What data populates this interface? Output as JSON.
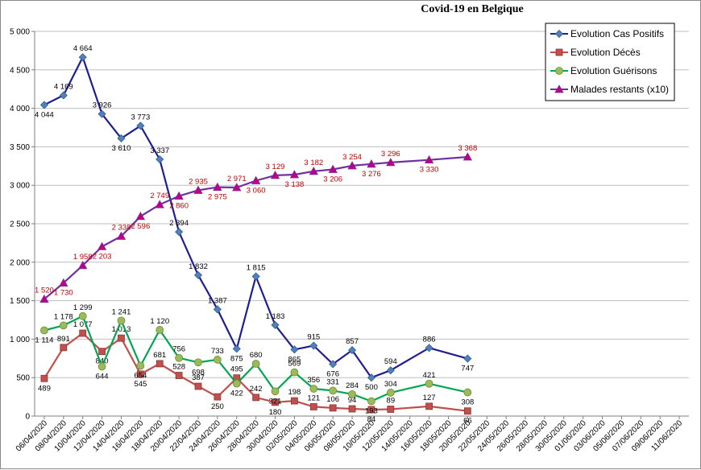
{
  "chart_data": {
    "type": "line",
    "title": "Covid-19 en Belgique",
    "xlabel": "",
    "ylabel": "",
    "ylim": [
      0,
      5000
    ],
    "y_ticks": [
      "0",
      "500",
      "1 000",
      "1 500",
      "2 000",
      "2 500",
      "3 000",
      "3 500",
      "4 000",
      "4 500",
      "5 000"
    ],
    "x_tick_labels": [
      "06/04/2020",
      "08/04/2020",
      "10/04/2020",
      "12/04/2020",
      "14/04/2020",
      "16/04/2020",
      "18/04/2020",
      "20/04/2020",
      "22/04/2020",
      "24/04/2020",
      "26/04/2020",
      "28/04/2020",
      "30/04/2020",
      "02/05/2020",
      "04/05/2020",
      "06/05/2020",
      "08/05/2020",
      "10/05/2020",
      "12/05/2020",
      "14/05/2020",
      "16/05/2020",
      "18/05/2020",
      "20/05/2020",
      "22/05/2020",
      "24/05/2020",
      "26/05/2020",
      "28/05/2020",
      "30/05/2020",
      "01/06/2020",
      "03/06/2020",
      "05/06/2020",
      "07/06/2020",
      "09/06/2020",
      "11/06/2020"
    ],
    "grid": true,
    "legend_position": "top-right",
    "series": [
      {
        "name": "Evolution Cas Positifs",
        "color": "#1F1F8F",
        "marker": "diamond",
        "label_color": "#000000",
        "points": [
          [
            0,
            4044,
            "4 044"
          ],
          [
            2,
            4169,
            "4 169"
          ],
          [
            4,
            4664,
            "4 664"
          ],
          [
            6,
            3926,
            "3 926"
          ],
          [
            8,
            3610,
            "3 610"
          ],
          [
            10,
            3773,
            "3 773"
          ],
          [
            12,
            3337,
            "3 337"
          ],
          [
            14,
            2394,
            "2 394"
          ],
          [
            16,
            1832,
            "1 832"
          ],
          [
            18,
            1387,
            "1 387"
          ],
          [
            20,
            875,
            "875"
          ],
          [
            22,
            1815,
            "1 815"
          ],
          [
            24,
            1183,
            "1 183"
          ],
          [
            26,
            865,
            "865"
          ],
          [
            28,
            915,
            "915"
          ],
          [
            30,
            676,
            "676"
          ],
          [
            32,
            857,
            "857"
          ],
          [
            34,
            500,
            "500"
          ],
          [
            36,
            594,
            "594"
          ],
          [
            40,
            886,
            "886"
          ],
          [
            44,
            747,
            "747"
          ]
        ]
      },
      {
        "name": "Evolution Décès",
        "color": "#C0504D",
        "marker": "square",
        "label_color": "#000000",
        "points": [
          [
            0,
            489,
            "489"
          ],
          [
            2,
            891,
            "891"
          ],
          [
            4,
            1077,
            "1 077"
          ],
          [
            6,
            840,
            "840"
          ],
          [
            8,
            1013,
            "1 013"
          ],
          [
            10,
            545,
            "545"
          ],
          [
            12,
            681,
            "681"
          ],
          [
            14,
            528,
            "528"
          ],
          [
            16,
            387,
            "387"
          ],
          [
            18,
            250,
            "250"
          ],
          [
            20,
            495,
            "495"
          ],
          [
            22,
            242,
            "242"
          ],
          [
            24,
            180,
            "180"
          ],
          [
            26,
            198,
            "198"
          ],
          [
            28,
            121,
            "121"
          ],
          [
            30,
            106,
            "106"
          ],
          [
            32,
            94,
            "94"
          ],
          [
            34,
            84,
            "84"
          ],
          [
            36,
            89,
            "89"
          ],
          [
            40,
            127,
            "127"
          ],
          [
            44,
            66,
            "66"
          ]
        ]
      },
      {
        "name": "Evolution Guérisons",
        "color": "#00A650",
        "marker": "circle",
        "label_color": "#000000",
        "points": [
          [
            0,
            1114,
            "1 114"
          ],
          [
            2,
            1178,
            "1 178"
          ],
          [
            4,
            1299,
            "1 299"
          ],
          [
            6,
            644,
            "644"
          ],
          [
            8,
            1241,
            "1 241"
          ],
          [
            10,
            654,
            "654"
          ],
          [
            12,
            1120,
            "1 120"
          ],
          [
            14,
            756,
            "756"
          ],
          [
            16,
            698,
            "698"
          ],
          [
            18,
            733,
            "733"
          ],
          [
            20,
            422,
            "422"
          ],
          [
            22,
            680,
            "680"
          ],
          [
            24,
            321,
            "321"
          ],
          [
            26,
            569,
            "569"
          ],
          [
            28,
            356,
            "356"
          ],
          [
            30,
            331,
            "331"
          ],
          [
            32,
            284,
            "284"
          ],
          [
            34,
            193,
            "193"
          ],
          [
            36,
            304,
            "304"
          ],
          [
            40,
            421,
            "421"
          ],
          [
            44,
            308,
            "308"
          ]
        ]
      },
      {
        "name": "Malades restants (x10)",
        "color": "#7030A0",
        "marker": "triangle",
        "label_color": "#C00000",
        "points": [
          [
            0,
            1520,
            "1 520"
          ],
          [
            2,
            1730,
            "1 730"
          ],
          [
            4,
            1958,
            "1 958"
          ],
          [
            6,
            2203,
            "2 203"
          ],
          [
            8,
            2338,
            "2 338"
          ],
          [
            10,
            2596,
            "2 596"
          ],
          [
            12,
            2749,
            "2 749"
          ],
          [
            14,
            2860,
            "2 860"
          ],
          [
            16,
            2935,
            "2 935"
          ],
          [
            18,
            2975,
            "2 975"
          ],
          [
            20,
            2971,
            "2 971"
          ],
          [
            22,
            3060,
            "3 060"
          ],
          [
            24,
            3129,
            "3 129"
          ],
          [
            26,
            3138,
            "3 138"
          ],
          [
            28,
            3182,
            "3 182"
          ],
          [
            30,
            3206,
            "3 206"
          ],
          [
            32,
            3254,
            "3 254"
          ],
          [
            34,
            3276,
            "3 276"
          ],
          [
            36,
            3296,
            "3 296"
          ],
          [
            40,
            3330,
            "3 330"
          ],
          [
            44,
            3368,
            "3 368"
          ]
        ]
      }
    ]
  }
}
